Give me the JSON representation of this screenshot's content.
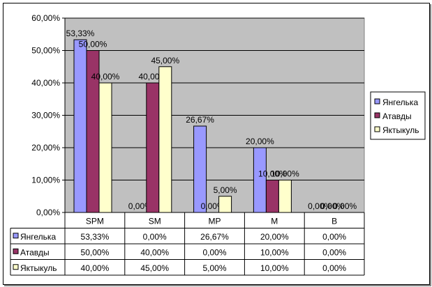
{
  "chart_data": {
    "type": "bar",
    "categories": [
      "SPM",
      "SM",
      "MP",
      "M",
      "B"
    ],
    "series": [
      {
        "name": "Янгелька",
        "values": [
          53.33,
          0.0,
          26.67,
          20.0,
          0.0
        ],
        "labels": [
          "53,33%",
          "0,00%",
          "26,67%",
          "20,00%",
          "0,00%"
        ],
        "color": "#9999ff"
      },
      {
        "name": "Атавды",
        "values": [
          50.0,
          40.0,
          0.0,
          10.0,
          0.0
        ],
        "labels": [
          "50,00%",
          "40,00%",
          "0,00%",
          "10,00%",
          "0,00%"
        ],
        "color": "#993366"
      },
      {
        "name": "Яктыкуль",
        "values": [
          40.0,
          45.0,
          5.0,
          10.0,
          0.0
        ],
        "labels": [
          "40,00%",
          "45,00%",
          "5,00%",
          "10,00%",
          "0,00%"
        ],
        "color": "#ffffcc"
      }
    ],
    "ylim": [
      0,
      60
    ],
    "yticks": [
      "0,00%",
      "10,00%",
      "20,00%",
      "30,00%",
      "40,00%",
      "50,00%",
      "60,00%"
    ],
    "grid": true,
    "legend_position": "right",
    "data_table": true,
    "colors": {
      "plot_background": "#c0c0c0"
    }
  }
}
